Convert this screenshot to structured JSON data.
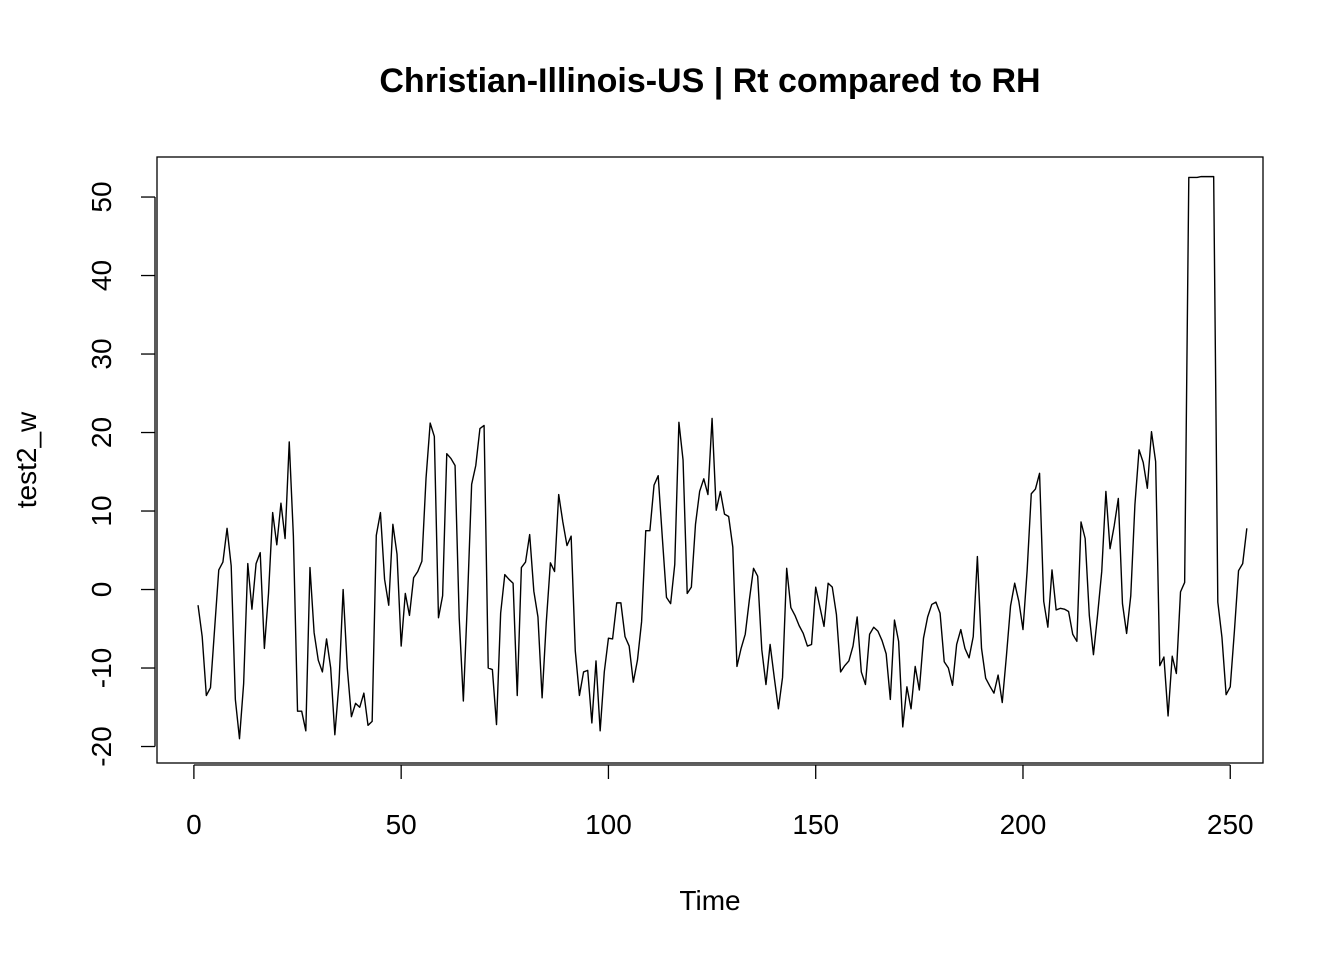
{
  "chart_data": {
    "type": "line",
    "title": "Christian-Illinois-US | Rt compared to RH",
    "xlabel": "Time",
    "ylabel": "test2_w",
    "xlim": [
      -8.9,
      257.9
    ],
    "ylim": [
      -22.1,
      55.1
    ],
    "xticks": [
      0,
      50,
      100,
      150,
      200,
      250
    ],
    "xtick_labels": [
      "0",
      "50",
      "100",
      "150",
      "200",
      "250"
    ],
    "yticks": [
      -20,
      -10,
      0,
      10,
      20,
      30,
      40,
      50
    ],
    "ytick_labels": [
      "-20",
      "-10",
      "0",
      "10",
      "20",
      "30",
      "40",
      "50"
    ],
    "grid": false,
    "series": [
      {
        "name": "test2_w",
        "x_start": 1,
        "values": [
          -2,
          -6,
          -13.5,
          -12.5,
          -5,
          2.5,
          3.5,
          7.8,
          3,
          -14,
          -19,
          -12,
          3.3,
          -2.5,
          3.3,
          4.7,
          -7.5,
          -0.5,
          9.8,
          5.7,
          11,
          6.5,
          18.8,
          6.8,
          -15.5,
          -15.5,
          -18,
          2.8,
          -5.5,
          -9,
          -10.5,
          -6.3,
          -10,
          -18.5,
          -12,
          0,
          -10,
          -16.2,
          -14.5,
          -15,
          -13.2,
          -17.3,
          -16.8,
          6.9,
          9.8,
          1.3,
          -2,
          8.3,
          4.5,
          -7.2,
          -0.5,
          -3.3,
          1.5,
          2.3,
          3.6,
          14.2,
          21.2,
          19.5,
          -3.6,
          -0.8,
          17.3,
          16.7,
          15.8,
          -3.6,
          -14.2,
          -1.3,
          13.4,
          15.8,
          20.5,
          20.9,
          -10,
          -10.2,
          -17.2,
          -3,
          1.9,
          1.3,
          0.8,
          -13.5,
          2.8,
          3.5,
          7,
          -0.2,
          -3.5,
          -13.8,
          -4.2,
          3.4,
          2.3,
          12.1,
          8.6,
          5.6,
          6.8,
          -7.8,
          -13.5,
          -10.5,
          -10.3,
          -17,
          -9.1,
          -18,
          -10.5,
          -6.2,
          -6.3,
          -1.7,
          -1.7,
          -6,
          -7.2,
          -11.8,
          -9,
          -4.1,
          7.5,
          7.5,
          13.3,
          14.5,
          6.6,
          -1,
          -1.8,
          3.2,
          21.3,
          16.5,
          -0.5,
          0.3,
          8.3,
          12.5,
          14.1,
          12.1,
          21.8,
          10.1,
          12.5,
          9.6,
          9.3,
          5.4,
          -9.8,
          -7.5,
          -5.7,
          -1.3,
          2.7,
          1.7,
          -7.7,
          -12.1,
          -7,
          -11.2,
          -15.2,
          -11.2,
          2.7,
          -2.3,
          -3.3,
          -4.6,
          -5.6,
          -7.2,
          -7,
          0.3,
          -2.2,
          -4.7,
          0.8,
          0.3,
          -3.2,
          -10.5,
          -9.7,
          -9.1,
          -7.2,
          -3.5,
          -10.5,
          -12.1,
          -5.7,
          -4.8,
          -5.3,
          -6.5,
          -8.2,
          -14,
          -3.9,
          -6.6,
          -17.5,
          -12.4,
          -15.2,
          -9.8,
          -12.8,
          -6.2,
          -3.5,
          -1.9,
          -1.6,
          -3,
          -9.2,
          -10,
          -12.2,
          -7,
          -5.1,
          -7.5,
          -8.7,
          -6,
          4.2,
          -7.5,
          -11.3,
          -12.3,
          -13.2,
          -10.9,
          -14.4,
          -8.5,
          -2.1,
          0.8,
          -1.5,
          -5.1,
          2.4,
          12.2,
          12.8,
          14.8,
          -1.5,
          -4.8,
          2.5,
          -2.6,
          -2.4,
          -2.5,
          -2.8,
          -5.7,
          -6.6,
          8.6,
          6.5,
          -3.3,
          -8.3,
          -3.2,
          2.3,
          12.5,
          5.2,
          8.1,
          11.6,
          -1.8,
          -5.6,
          -0.8,
          10.8,
          17.8,
          16.2,
          12.9,
          20.1,
          16.3,
          -9.7,
          -8.6,
          -16.1,
          -8.5,
          -10.7,
          -0.3,
          0.9,
          52.5,
          52.5,
          52.5,
          52.6,
          52.6,
          52.6,
          52.6,
          -1.6,
          -6.1,
          -13.4,
          -12.4,
          -5.3,
          2.4,
          3.3,
          7.8
        ]
      }
    ]
  }
}
